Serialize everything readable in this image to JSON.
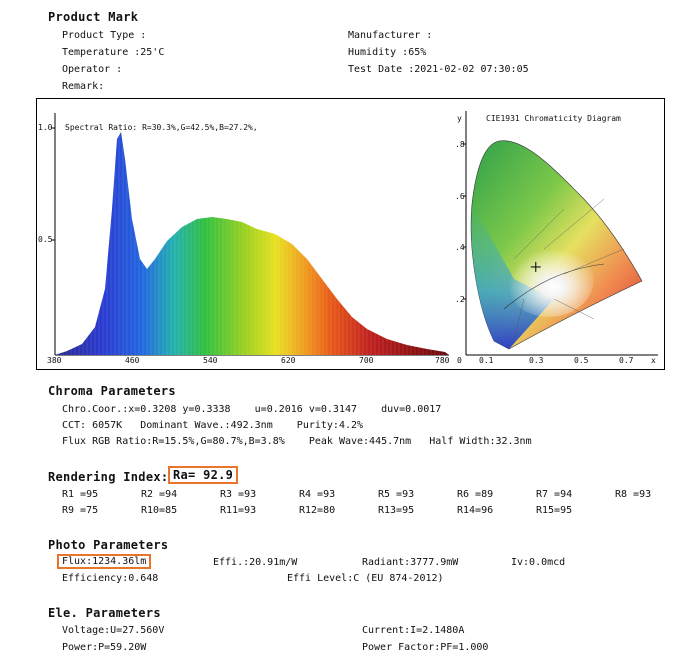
{
  "header": {
    "title": "Product Mark",
    "product_type": "Product Type :",
    "manufacturer": "Manufacturer :",
    "temperature": "Temperature :25'C",
    "humidity": "Humidity :65%",
    "operator": "Operator :",
    "test_date": "Test Date :2021-02-02 07:30:05",
    "remark": "Remark:"
  },
  "spectrum": {
    "y_top": "1.0",
    "y_mid": "0.5",
    "ratio_text": "Spectral Ratio: R=30.3%,G=42.5%,B=27.2%,",
    "x_labels": [
      "380",
      "460",
      "540",
      "620",
      "700",
      "780"
    ]
  },
  "cie": {
    "title": "CIE1931 Chromaticity Diagram",
    "y_axis": "y",
    "x_axis": "x",
    "y_labels": [
      ".8",
      ".6",
      ".4",
      ".2"
    ],
    "x_labels": [
      "0",
      "0.1",
      "0.3",
      "0.5",
      "0.7"
    ],
    "point": {
      "x": 0.3208,
      "y": 0.3338
    }
  },
  "chroma": {
    "title": "Chroma Parameters",
    "line1": "Chro.Coor.:x=0.3208 y=0.3338    u=0.2016 v=0.3147    duv=0.0017",
    "line2": "CCT: 6057K   Dominant Wave.:492.3nm    Purity:4.2%",
    "line3": "Flux RGB Ratio:R=15.5%,G=80.7%,B=3.8%    Peak Wave:445.7nm   Half Width:32.3nm"
  },
  "rendering": {
    "title": "Rendering Index:",
    "ra": "Ra= 92.9",
    "row1": [
      "R1 =95",
      "R2 =94",
      "R3 =93",
      "R4 =93",
      "R5 =93",
      "R6 =89",
      "R7 =94",
      "R8 =93"
    ],
    "row2": [
      "R9 =75",
      "R10=85",
      "R11=93",
      "R12=80",
      "R13=95",
      "R14=96",
      "R15=95"
    ]
  },
  "photo": {
    "title": "Photo Parameters",
    "flux": "Flux:1234.36lm",
    "effi": "Effi.:20.91m/W",
    "radiant": "Radiant:3777.9mW",
    "iv": "Iv:0.0mcd",
    "efficiency": "Efficiency:0.648",
    "effi_level": "Effi Level:C (EU 874-2012)"
  },
  "ele": {
    "title": "Ele. Parameters",
    "voltage": "Voltage:U=27.560V",
    "current": "Current:I=2.1480A",
    "power": "Power:P=59.20W",
    "power_factor": "Power Factor:PF=1.000"
  }
}
